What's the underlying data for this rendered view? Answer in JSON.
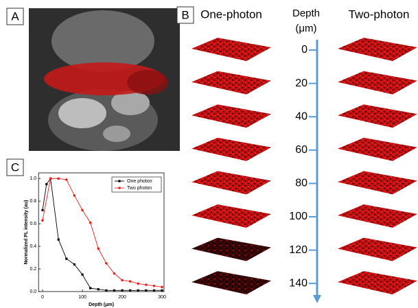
{
  "panels": {
    "a": {
      "label": "A"
    },
    "b": {
      "label": "B",
      "left_title": "One-photon",
      "right_title": "Two-photon",
      "axis_title_line1": "Depth",
      "axis_title_line2": "(μm)",
      "depths": [
        0,
        20,
        40,
        60,
        80,
        100,
        120,
        140
      ]
    },
    "c": {
      "label": "C"
    }
  },
  "chart_data": {
    "type": "line",
    "x_label": "Depth (μm)",
    "y_label": "Normalized PL intensity (au)",
    "xlim": [
      -10,
      305
    ],
    "ylim": [
      0,
      1.05
    ],
    "xticks": [
      0,
      100,
      200,
      300
    ],
    "yticks": [
      {
        "value": 0,
        "label": "0.0"
      },
      0.2,
      0.4,
      0.6,
      0.8,
      {
        "value": 1,
        "label": "1.0"
      }
    ],
    "legend": "upper right",
    "series": [
      {
        "name": "One photon",
        "color": "#000000",
        "marker": "square",
        "x": [
          0,
          10,
          20,
          40,
          60,
          80,
          100,
          120,
          140,
          160,
          180,
          200,
          220,
          240,
          260,
          280,
          300
        ],
        "values": [
          0.72,
          0.95,
          1.0,
          0.46,
          0.29,
          0.24,
          0.15,
          0.03,
          0.02,
          0.01,
          0.01,
          0.01,
          0.01,
          0.01,
          0.01,
          0.01,
          0.01
        ]
      },
      {
        "name": "Two photon",
        "color": "#e8231f",
        "marker": "circle",
        "x": [
          0,
          20,
          40,
          60,
          80,
          100,
          120,
          140,
          160,
          180,
          200,
          220,
          240,
          260,
          280,
          300
        ],
        "values": [
          0.63,
          1.0,
          1.0,
          0.99,
          0.85,
          0.72,
          0.61,
          0.38,
          0.25,
          0.16,
          0.1,
          0.09,
          0.07,
          0.06,
          0.05,
          0.04
        ]
      }
    ]
  }
}
